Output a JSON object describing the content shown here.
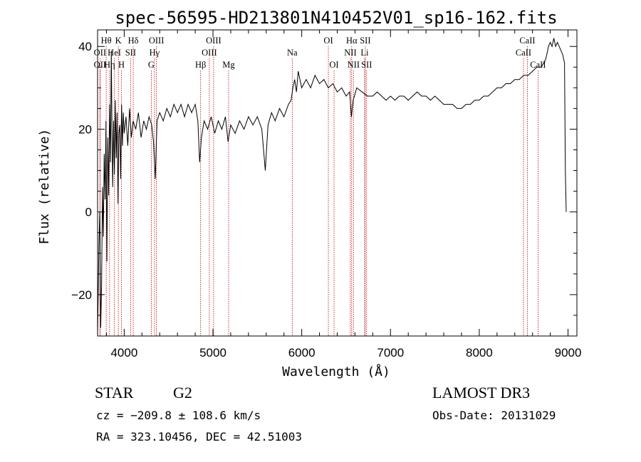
{
  "chart_data": {
    "type": "line",
    "title": "spec-56595-HD213801N410452V01_sp16-162.fits",
    "xlabel": "Wavelength (Å)",
    "ylabel": "Flux (relative)",
    "xlim": [
      3700,
      9100
    ],
    "ylim": [
      -30,
      44
    ],
    "xticks": [
      4000,
      5000,
      6000,
      7000,
      8000,
      9000
    ],
    "yticks": [
      -20,
      0,
      20,
      40
    ],
    "series": [
      {
        "points": [
          [
            3700,
            -30
          ],
          [
            3715,
            -8
          ],
          [
            3725,
            0
          ],
          [
            3735,
            -28
          ],
          [
            3745,
            -18
          ],
          [
            3755,
            6
          ],
          [
            3765,
            -6
          ],
          [
            3775,
            14
          ],
          [
            3785,
            3
          ],
          [
            3795,
            22
          ],
          [
            3805,
            -12
          ],
          [
            3815,
            18
          ],
          [
            3825,
            4
          ],
          [
            3835,
            26
          ],
          [
            3845,
            12
          ],
          [
            3855,
            39
          ],
          [
            3862,
            20
          ],
          [
            3870,
            6
          ],
          [
            3880,
            22
          ],
          [
            3890,
            9
          ],
          [
            3900,
            27
          ],
          [
            3910,
            13
          ],
          [
            3920,
            24
          ],
          [
            3930,
            2
          ],
          [
            3940,
            19
          ],
          [
            3950,
            21
          ],
          [
            3960,
            8
          ],
          [
            3970,
            26
          ],
          [
            3980,
            16
          ],
          [
            3990,
            24
          ],
          [
            4000,
            19
          ],
          [
            4020,
            23
          ],
          [
            4040,
            16
          ],
          [
            4060,
            25
          ],
          [
            4080,
            18
          ],
          [
            4100,
            22
          ],
          [
            4130,
            20
          ],
          [
            4160,
            24
          ],
          [
            4190,
            18
          ],
          [
            4220,
            22
          ],
          [
            4250,
            20
          ],
          [
            4280,
            23
          ],
          [
            4310,
            21
          ],
          [
            4330,
            17
          ],
          [
            4350,
            8
          ],
          [
            4370,
            22
          ],
          [
            4400,
            24
          ],
          [
            4440,
            22
          ],
          [
            4480,
            25
          ],
          [
            4520,
            23
          ],
          [
            4560,
            26
          ],
          [
            4600,
            24
          ],
          [
            4640,
            26
          ],
          [
            4680,
            23
          ],
          [
            4720,
            26
          ],
          [
            4760,
            24
          ],
          [
            4800,
            26
          ],
          [
            4830,
            22
          ],
          [
            4850,
            12
          ],
          [
            4870,
            18
          ],
          [
            4900,
            22
          ],
          [
            4940,
            20
          ],
          [
            4980,
            23
          ],
          [
            5020,
            19
          ],
          [
            5060,
            22
          ],
          [
            5100,
            20
          ],
          [
            5140,
            23
          ],
          [
            5170,
            17
          ],
          [
            5200,
            21
          ],
          [
            5250,
            19
          ],
          [
            5300,
            22
          ],
          [
            5350,
            20
          ],
          [
            5400,
            23
          ],
          [
            5450,
            21
          ],
          [
            5500,
            23
          ],
          [
            5550,
            20
          ],
          [
            5590,
            10
          ],
          [
            5620,
            21
          ],
          [
            5660,
            24
          ],
          [
            5700,
            22
          ],
          [
            5750,
            25
          ],
          [
            5800,
            23
          ],
          [
            5850,
            26
          ],
          [
            5880,
            27
          ],
          [
            5900,
            30
          ],
          [
            5920,
            32
          ],
          [
            5940,
            29
          ],
          [
            5960,
            34
          ],
          [
            6000,
            30
          ],
          [
            6050,
            32
          ],
          [
            6100,
            30
          ],
          [
            6150,
            33
          ],
          [
            6200,
            31
          ],
          [
            6250,
            32
          ],
          [
            6300,
            30
          ],
          [
            6350,
            31
          ],
          [
            6400,
            29
          ],
          [
            6450,
            30
          ],
          [
            6500,
            28
          ],
          [
            6540,
            29
          ],
          [
            6560,
            23
          ],
          [
            6580,
            27
          ],
          [
            6620,
            30
          ],
          [
            6680,
            29
          ],
          [
            6740,
            28
          ],
          [
            6800,
            28
          ],
          [
            6850,
            29
          ],
          [
            6900,
            28
          ],
          [
            6950,
            27
          ],
          [
            7000,
            28
          ],
          [
            7050,
            27
          ],
          [
            7100,
            28
          ],
          [
            7150,
            28
          ],
          [
            7200,
            27
          ],
          [
            7250,
            28
          ],
          [
            7300,
            29
          ],
          [
            7350,
            28
          ],
          [
            7400,
            28
          ],
          [
            7450,
            27
          ],
          [
            7500,
            28
          ],
          [
            7550,
            27
          ],
          [
            7600,
            26
          ],
          [
            7650,
            26
          ],
          [
            7700,
            26
          ],
          [
            7750,
            25
          ],
          [
            7800,
            25
          ],
          [
            7850,
            26
          ],
          [
            7900,
            26
          ],
          [
            7950,
            27
          ],
          [
            8000,
            27
          ],
          [
            8050,
            28
          ],
          [
            8100,
            28
          ],
          [
            8150,
            29
          ],
          [
            8200,
            30
          ],
          [
            8250,
            30
          ],
          [
            8300,
            31
          ],
          [
            8350,
            31
          ],
          [
            8400,
            32
          ],
          [
            8450,
            32
          ],
          [
            8500,
            33
          ],
          [
            8550,
            33
          ],
          [
            8600,
            34
          ],
          [
            8650,
            35
          ],
          [
            8700,
            35
          ],
          [
            8750,
            37
          ],
          [
            8780,
            40
          ],
          [
            8800,
            41
          ],
          [
            8820,
            40
          ],
          [
            8840,
            42
          ],
          [
            8860,
            40
          ],
          [
            8880,
            41
          ],
          [
            8900,
            40
          ],
          [
            8920,
            39
          ],
          [
            8940,
            38
          ],
          [
            8960,
            36
          ],
          [
            8970,
            10
          ],
          [
            8980,
            0
          ]
        ]
      }
    ],
    "lines": [
      {
        "label": "Hθ",
        "x": 3797,
        "row": 1
      },
      {
        "label": "OII",
        "x": 3727,
        "row": 2
      },
      {
        "label": "OII",
        "x": 3727,
        "row": 3
      },
      {
        "label": "K",
        "x": 3934,
        "row": 1
      },
      {
        "label": "HeI",
        "x": 3889,
        "row": 2
      },
      {
        "label": "Hη",
        "x": 3835,
        "row": 3
      },
      {
        "label": "H",
        "x": 3969,
        "row": 3
      },
      {
        "label": "Hδ",
        "x": 4102,
        "row": 1
      },
      {
        "label": "SII",
        "x": 4072,
        "row": 2
      },
      {
        "label": "OIII",
        "x": 4363,
        "row": 1
      },
      {
        "label": "Hγ",
        "x": 4341,
        "row": 2
      },
      {
        "label": "G",
        "x": 4305,
        "row": 3
      },
      {
        "label": "Hβ",
        "x": 4861,
        "row": 3
      },
      {
        "label": "OIII",
        "x": 5007,
        "row": 1
      },
      {
        "label": "OIII",
        "x": 4959,
        "row": 2
      },
      {
        "label": "Mg",
        "x": 5176,
        "row": 3
      },
      {
        "label": "Na",
        "x": 5893,
        "row": 2
      },
      {
        "label": "OI",
        "x": 6300,
        "row": 1
      },
      {
        "label": "OI",
        "x": 6364,
        "row": 3
      },
      {
        "label": "Hα",
        "x": 6563,
        "row": 1
      },
      {
        "label": "NII",
        "x": 6548,
        "row": 2
      },
      {
        "label": "NII",
        "x": 6583,
        "row": 3
      },
      {
        "label": "SII",
        "x": 6716,
        "row": 1
      },
      {
        "label": "Li",
        "x": 6708,
        "row": 2
      },
      {
        "label": "SII",
        "x": 6731,
        "row": 3
      },
      {
        "label": "CaII",
        "x": 8542,
        "row": 1
      },
      {
        "label": "CaII",
        "x": 8498,
        "row": 2
      },
      {
        "label": "CaII",
        "x": 8662,
        "row": 3
      }
    ]
  },
  "info": {
    "object_class": "STAR",
    "subclass": "G2",
    "survey": "LAMOST DR3",
    "redshift": "cz = −209.8 ± 108.6 km/s",
    "obs_date": "Obs-Date: 20131029",
    "coords": "RA = 323.10456, DEC =  42.51003"
  },
  "colors": {
    "spectrum": "#000000",
    "line_markers": "#c00000"
  }
}
